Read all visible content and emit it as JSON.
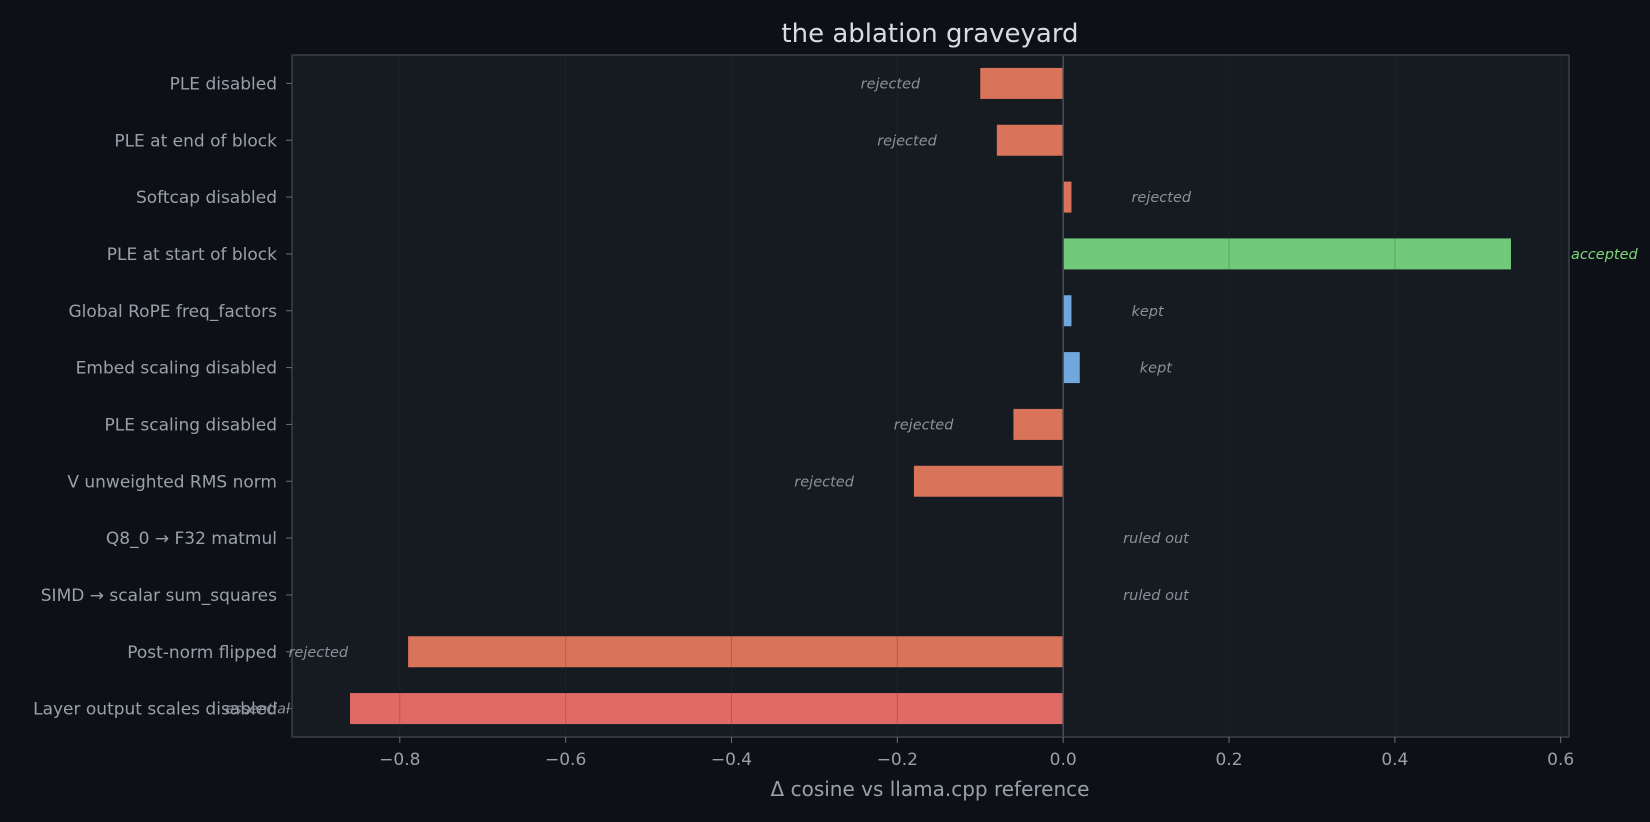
{
  "chart_data": {
    "type": "bar",
    "orientation": "horizontal",
    "title": "the ablation graveyard",
    "xlabel": "Δ cosine vs llama.cpp reference",
    "ylabel": "",
    "xlim": [
      -0.93,
      0.61
    ],
    "xticks": [
      -0.8,
      -0.6,
      -0.4,
      -0.2,
      0.0,
      0.2,
      0.4,
      0.6
    ],
    "xtick_labels": [
      "−0.8",
      "−0.6",
      "−0.4",
      "−0.2",
      "0.0",
      "0.2",
      "0.4",
      "0.6"
    ],
    "grid": true,
    "categories": [
      "PLE disabled",
      "PLE at end of block",
      "Softcap disabled",
      "PLE at start of block",
      "Global RoPE freq_factors",
      "Embed scaling disabled",
      "PLE scaling disabled",
      "V unweighted RMS norm",
      "Q8_0 → F32 matmul",
      "SIMD → scalar sum_squares",
      "Post-norm flipped",
      "Layer output scales disabled"
    ],
    "values": [
      -0.1,
      -0.08,
      0.01,
      0.54,
      0.01,
      0.02,
      -0.06,
      -0.18,
      0.0,
      0.0,
      -0.79,
      -0.86
    ],
    "annotations": [
      "rejected",
      "rejected",
      "rejected",
      "accepted",
      "kept",
      "kept",
      "rejected",
      "rejected",
      "ruled out",
      "ruled out",
      "rejected",
      "essential"
    ],
    "bar_colors": [
      "#d9735a",
      "#d9735a",
      "#d9735a",
      "#71c97a",
      "#6fa8dc",
      "#6fa8dc",
      "#d9735a",
      "#d9735a",
      "#d9735a",
      "#d9735a",
      "#d9735a",
      "#e06b66"
    ],
    "annotation_colors": [
      "#8b9098",
      "#8b9098",
      "#8b9098",
      "#7dd87a",
      "#8b9098",
      "#8b9098",
      "#8b9098",
      "#8b9098",
      "#8b9098",
      "#8b9098",
      "#8b9098",
      "#8b9098"
    ],
    "colors": {
      "background": "#0d1117",
      "plot_background": "#161a21",
      "axis": "#3a3f47",
      "grid": "#232831",
      "zero_line": "#4a4f57"
    }
  }
}
